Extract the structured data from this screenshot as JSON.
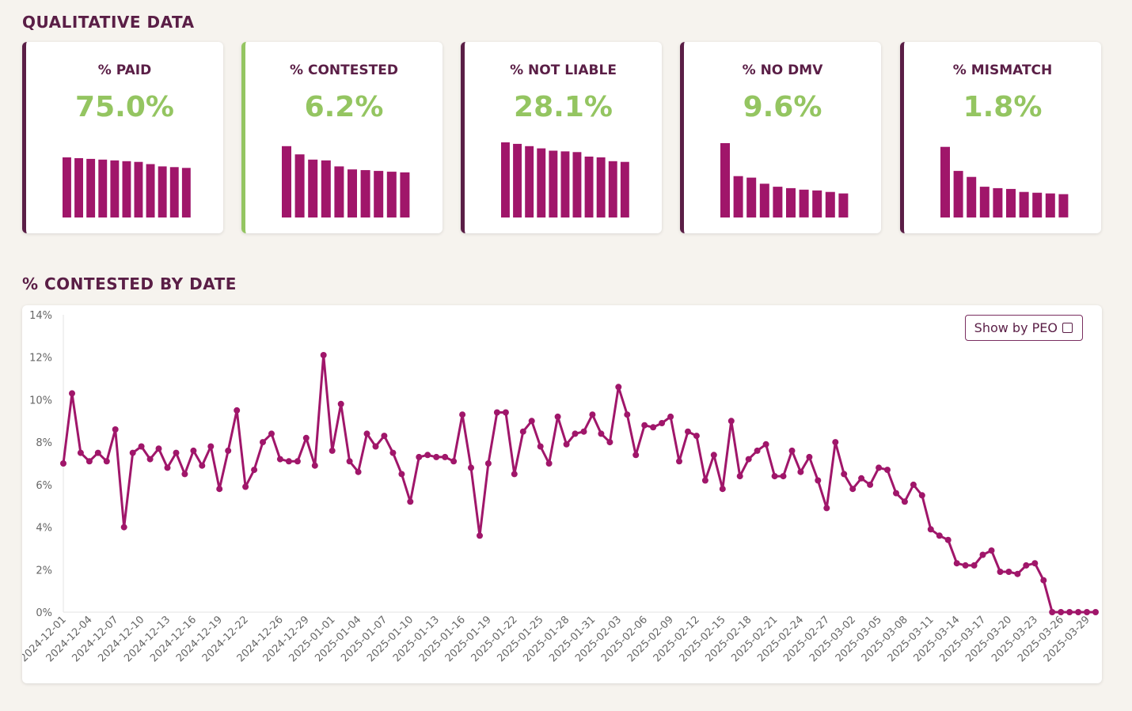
{
  "qualitative": {
    "title": "QUALITATIVE DATA",
    "cards": [
      {
        "label": "% PAID",
        "value": "75.0%",
        "accent": "#5a1e46",
        "bars": [
          0.8,
          0.79,
          0.78,
          0.77,
          0.76,
          0.75,
          0.74,
          0.71,
          0.68,
          0.67,
          0.66
        ]
      },
      {
        "label": "% CONTESTED",
        "value": "6.2%",
        "accent": "#94c561",
        "bars": [
          0.95,
          0.84,
          0.77,
          0.76,
          0.68,
          0.64,
          0.63,
          0.62,
          0.61,
          0.6
        ]
      },
      {
        "label": "% NOT LIABLE",
        "value": "28.1%",
        "accent": "#5a1e46",
        "bars": [
          1.0,
          0.98,
          0.95,
          0.92,
          0.89,
          0.88,
          0.87,
          0.81,
          0.8,
          0.75,
          0.74
        ]
      },
      {
        "label": "% NO DMV",
        "value": "9.6%",
        "accent": "#5a1e46",
        "bars": [
          0.99,
          0.55,
          0.53,
          0.45,
          0.41,
          0.39,
          0.37,
          0.36,
          0.34,
          0.32
        ]
      },
      {
        "label": "% MISMATCH",
        "value": "1.8%",
        "accent": "#5a1e46",
        "bars": [
          0.94,
          0.62,
          0.54,
          0.41,
          0.39,
          0.38,
          0.34,
          0.33,
          0.32,
          0.31
        ]
      }
    ]
  },
  "contested": {
    "title": "% CONTESTED BY DATE",
    "toggle_label": "Show by PEO"
  },
  "colors": {
    "series": "#a0166a",
    "heading": "#5a1e46",
    "value_green": "#94c561",
    "bars": "#a0166a"
  },
  "chart_data": {
    "type": "line",
    "title": "% CONTESTED BY DATE",
    "xlabel": "",
    "ylabel": "",
    "ylim": [
      0,
      14
    ],
    "y_ticks": [
      "0%",
      "2%",
      "4%",
      "6%",
      "8%",
      "10%",
      "12%",
      "14%"
    ],
    "grid": false,
    "start_date": "2024-12-01",
    "x_tick_labels": [
      "2024-12-01",
      "2024-12-04",
      "2024-12-07",
      "2024-12-10",
      "2024-12-13",
      "2024-12-16",
      "2024-12-19",
      "2024-12-22",
      "2024-12-26",
      "2024-12-29",
      "2025-01-01",
      "2025-01-04",
      "2025-01-07",
      "2025-01-10",
      "2025-01-13",
      "2025-01-16",
      "2025-01-19",
      "2025-01-22",
      "2025-01-25",
      "2025-01-28",
      "2025-01-31",
      "2025-02-03",
      "2025-02-06",
      "2025-02-09",
      "2025-02-12",
      "2025-02-15",
      "2025-02-18",
      "2025-02-21",
      "2025-02-24",
      "2025-02-27",
      "2025-03-02",
      "2025-03-05",
      "2025-03-08",
      "2025-03-11",
      "2025-03-14",
      "2025-03-17",
      "2025-03-20",
      "2025-03-23",
      "2025-03-26",
      "2025-03-29"
    ],
    "series": [
      {
        "values": [
          7.0,
          10.3,
          7.5,
          7.1,
          7.5,
          7.1,
          8.6,
          4.0,
          7.5,
          7.8,
          7.2,
          7.7,
          6.8,
          7.5,
          6.5,
          7.6,
          6.9,
          7.8,
          5.8,
          7.6,
          9.5,
          5.9,
          6.7,
          8.0,
          8.4,
          7.2,
          7.1,
          7.1,
          8.2,
          6.9,
          12.1,
          7.6,
          9.8,
          7.1,
          6.6,
          8.4,
          7.8,
          8.3,
          7.5,
          6.5,
          5.2,
          7.3,
          7.4,
          7.3,
          7.3,
          7.1,
          9.3,
          6.8,
          3.6,
          7.0,
          9.4,
          9.4,
          6.5,
          8.5,
          9.0,
          7.8,
          7.0,
          9.2,
          7.9,
          8.4,
          8.5,
          9.3,
          8.4,
          8.0,
          10.6,
          9.3,
          7.4,
          8.8,
          8.7,
          8.9,
          9.2,
          7.1,
          8.5,
          8.3,
          6.2,
          7.4,
          5.8,
          9.0,
          6.4,
          7.2,
          7.6,
          7.9,
          6.4,
          6.4,
          7.6,
          6.6,
          7.3,
          6.2,
          4.9,
          8.0,
          6.5,
          5.8,
          6.3,
          6.0,
          6.8,
          6.7,
          5.6,
          5.2,
          6.0,
          5.5,
          3.9,
          3.6,
          3.4,
          2.3,
          2.2,
          2.2,
          2.7,
          2.9,
          1.9,
          1.9,
          1.8,
          2.2,
          2.3,
          1.5,
          0.0,
          0.0,
          0.0,
          0.0,
          0.0,
          0.0
        ]
      }
    ]
  }
}
